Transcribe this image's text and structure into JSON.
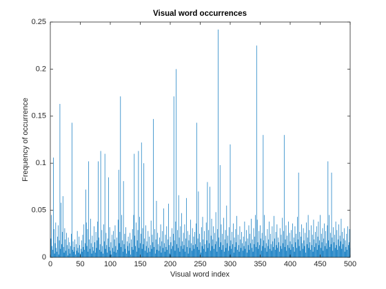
{
  "chart_data": {
    "type": "bar",
    "title": "Visual word occurrences",
    "xlabel": "Visual word index",
    "ylabel": "Frequency of occurrence",
    "color": "#0072bd",
    "xlim": [
      0,
      500
    ],
    "xticks": [
      0,
      50,
      100,
      150,
      200,
      250,
      300,
      350,
      400,
      450,
      500
    ],
    "ylim": [
      0,
      0.25
    ],
    "yticks": [
      0,
      0.05,
      0.1,
      0.15,
      0.2,
      0.25
    ],
    "x": [
      1,
      2,
      3,
      4,
      5,
      6,
      7,
      8,
      9,
      10,
      11,
      12,
      13,
      14,
      15,
      16,
      17,
      18,
      19,
      20,
      21,
      22,
      23,
      24,
      25,
      26,
      27,
      28,
      29,
      30,
      31,
      32,
      33,
      34,
      35,
      36,
      37,
      38,
      39,
      40,
      41,
      42,
      43,
      44,
      45,
      46,
      47,
      48,
      49,
      50,
      51,
      52,
      53,
      54,
      55,
      56,
      57,
      58,
      59,
      60,
      61,
      62,
      63,
      64,
      65,
      66,
      67,
      68,
      69,
      70,
      71,
      72,
      73,
      74,
      75,
      76,
      77,
      78,
      79,
      80,
      81,
      82,
      83,
      84,
      85,
      86,
      87,
      88,
      89,
      90,
      91,
      92,
      93,
      94,
      95,
      96,
      97,
      98,
      99,
      100,
      101,
      102,
      103,
      104,
      105,
      106,
      107,
      108,
      109,
      110,
      111,
      112,
      113,
      114,
      115,
      116,
      117,
      118,
      119,
      120,
      121,
      122,
      123,
      124,
      125,
      126,
      127,
      128,
      129,
      130,
      131,
      132,
      133,
      134,
      135,
      136,
      137,
      138,
      139,
      140,
      141,
      142,
      143,
      144,
      145,
      146,
      147,
      148,
      149,
      150,
      151,
      152,
      153,
      154,
      155,
      156,
      157,
      158,
      159,
      160,
      161,
      162,
      163,
      164,
      165,
      166,
      167,
      168,
      169,
      170,
      171,
      172,
      173,
      174,
      175,
      176,
      177,
      178,
      179,
      180,
      181,
      182,
      183,
      184,
      185,
      186,
      187,
      188,
      189,
      190,
      191,
      192,
      193,
      194,
      195,
      196,
      197,
      198,
      199,
      200,
      201,
      202,
      203,
      204,
      205,
      206,
      207,
      208,
      209,
      210,
      211,
      212,
      213,
      214,
      215,
      216,
      217,
      218,
      219,
      220,
      221,
      222,
      223,
      224,
      225,
      226,
      227,
      228,
      229,
      230,
      231,
      232,
      233,
      234,
      235,
      236,
      237,
      238,
      239,
      240,
      241,
      242,
      243,
      244,
      245,
      246,
      247,
      248,
      249,
      250,
      251,
      252,
      253,
      254,
      255,
      256,
      257,
      258,
      259,
      260,
      261,
      262,
      263,
      264,
      265,
      266,
      267,
      268,
      269,
      270,
      271,
      272,
      273,
      274,
      275,
      276,
      277,
      278,
      279,
      280,
      281,
      282,
      283,
      284,
      285,
      286,
      287,
      288,
      289,
      290,
      291,
      292,
      293,
      294,
      295,
      296,
      297,
      298,
      299,
      300,
      301,
      302,
      303,
      304,
      305,
      306,
      307,
      308,
      309,
      310,
      311,
      312,
      313,
      314,
      315,
      316,
      317,
      318,
      319,
      320,
      321,
      322,
      323,
      324,
      325,
      326,
      327,
      328,
      329,
      330,
      331,
      332,
      333,
      334,
      335,
      336,
      337,
      338,
      339,
      340,
      341,
      342,
      343,
      344,
      345,
      346,
      347,
      348,
      349,
      350,
      351,
      352,
      353,
      354,
      355,
      356,
      357,
      358,
      359,
      360,
      361,
      362,
      363,
      364,
      365,
      366,
      367,
      368,
      369,
      370,
      371,
      372,
      373,
      374,
      375,
      376,
      377,
      378,
      379,
      380,
      381,
      382,
      383,
      384,
      385,
      386,
      387,
      388,
      389,
      390,
      391,
      392,
      393,
      394,
      395,
      396,
      397,
      398,
      399,
      400,
      401,
      402,
      403,
      404,
      405,
      406,
      407,
      408,
      409,
      410,
      411,
      412,
      413,
      414,
      415,
      416,
      417,
      418,
      419,
      420,
      421,
      422,
      423,
      424,
      425,
      426,
      427,
      428,
      429,
      430,
      431,
      432,
      433,
      434,
      435,
      436,
      437,
      438,
      439,
      440,
      441,
      442,
      443,
      444,
      445,
      446,
      447,
      448,
      449,
      450,
      451,
      452,
      453,
      454,
      455,
      456,
      457,
      458,
      459,
      460,
      461,
      462,
      463,
      464,
      465,
      466,
      467,
      468,
      469,
      470,
      471,
      472,
      473,
      474,
      475,
      476,
      477,
      478,
      479,
      480,
      481,
      482,
      483,
      484,
      485,
      486,
      487,
      488,
      489,
      490,
      491,
      492,
      493,
      494,
      495,
      496,
      497,
      498,
      499,
      500
    ],
    "values": [
      0.02,
      0.045,
      0.012,
      0.008,
      0.106,
      0.03,
      0.004,
      0.015,
      0.037,
      0.01,
      0.006,
      0.022,
      0.034,
      0.003,
      0.018,
      0.163,
      0.009,
      0.058,
      0.014,
      0.027,
      0.065,
      0.011,
      0.005,
      0.031,
      0.019,
      0.007,
      0.026,
      0.013,
      0.002,
      0.021,
      0.009,
      0.016,
      0.004,
      0.012,
      0.025,
      0.143,
      0.008,
      0.017,
      0.006,
      0.011,
      0.019,
      0.003,
      0.014,
      0.007,
      0.028,
      0.01,
      0.005,
      0.022,
      0.013,
      0.004,
      0.009,
      0.018,
      0.006,
      0.024,
      0.011,
      0.035,
      0.008,
      0.015,
      0.072,
      0.037,
      0.012,
      0.03,
      0.006,
      0.102,
      0.019,
      0.009,
      0.041,
      0.015,
      0.004,
      0.023,
      0.011,
      0.007,
      0.033,
      0.016,
      0.005,
      0.027,
      0.01,
      0.018,
      0.038,
      0.102,
      0.021,
      0.008,
      0.014,
      0.113,
      0.006,
      0.029,
      0.012,
      0.004,
      0.035,
      0.017,
      0.11,
      0.009,
      0.026,
      0.013,
      0.005,
      0.02,
      0.085,
      0.011,
      0.032,
      0.007,
      0.016,
      0.003,
      0.024,
      0.01,
      0.028,
      0.006,
      0.019,
      0.034,
      0.012,
      0.005,
      0.021,
      0.008,
      0.04,
      0.093,
      0.015,
      0.027,
      0.171,
      0.011,
      0.045,
      0.018,
      0.006,
      0.081,
      0.014,
      0.025,
      0.009,
      0.032,
      0.004,
      0.017,
      0.012,
      0.022,
      0.007,
      0.015,
      0.026,
      0.003,
      0.019,
      0.011,
      0.03,
      0.008,
      0.045,
      0.11,
      0.023,
      0.012,
      0.037,
      0.006,
      0.018,
      0.029,
      0.113,
      0.01,
      0.043,
      0.015,
      0.025,
      0.122,
      0.009,
      0.031,
      0.014,
      0.1,
      0.02,
      0.007,
      0.034,
      0.012,
      0.017,
      0.005,
      0.028,
      0.01,
      0.022,
      0.006,
      0.013,
      0.039,
      0.009,
      0.024,
      0.016,
      0.147,
      0.011,
      0.03,
      0.004,
      0.019,
      0.06,
      0.008,
      0.026,
      0.014,
      0.007,
      0.021,
      0.012,
      0.035,
      0.005,
      0.017,
      0.028,
      0.01,
      0.052,
      0.015,
      0.006,
      0.024,
      0.011,
      0.033,
      0.008,
      0.019,
      0.057,
      0.013,
      0.004,
      0.022,
      0.016,
      0.009,
      0.031,
      0.012,
      0.025,
      0.171,
      0.018,
      0.007,
      0.038,
      0.2,
      0.014,
      0.029,
      0.01,
      0.066,
      0.021,
      0.006,
      0.033,
      0.012,
      0.047,
      0.017,
      0.009,
      0.026,
      0.013,
      0.035,
      0.006,
      0.02,
      0.063,
      0.011,
      0.028,
      0.004,
      0.018,
      0.024,
      0.01,
      0.04,
      0.015,
      0.007,
      0.031,
      0.013,
      0.022,
      0.009,
      0.027,
      0.014,
      0.036,
      0.143,
      0.011,
      0.02,
      0.07,
      0.008,
      0.025,
      0.016,
      0.005,
      0.032,
      0.012,
      0.043,
      0.019,
      0.009,
      0.028,
      0.014,
      0.006,
      0.037,
      0.018,
      0.08,
      0.01,
      0.029,
      0.015,
      0.075,
      0.007,
      0.023,
      0.041,
      0.012,
      0.019,
      0.033,
      0.009,
      0.026,
      0.014,
      0.048,
      0.017,
      0.006,
      0.03,
      0.242,
      0.021,
      0.011,
      0.098,
      0.016,
      0.035,
      0.008,
      0.025,
      0.013,
      0.042,
      0.006,
      0.019,
      0.029,
      0.01,
      0.055,
      0.015,
      0.023,
      0.007,
      0.032,
      0.012,
      0.12,
      0.018,
      0.009,
      0.027,
      0.014,
      0.036,
      0.005,
      0.021,
      0.011,
      0.03,
      0.016,
      0.044,
      0.008,
      0.024,
      0.013,
      0.006,
      0.033,
      0.019,
      0.01,
      0.027,
      0.015,
      0.007,
      0.022,
      0.012,
      0.038,
      0.009,
      0.017,
      0.029,
      0.005,
      0.02,
      0.013,
      0.034,
      0.008,
      0.025,
      0.015,
      0.041,
      0.01,
      0.019,
      0.006,
      0.031,
      0.014,
      0.022,
      0.045,
      0.011,
      0.225,
      0.04,
      0.016,
      0.009,
      0.028,
      0.013,
      0.034,
      0.02,
      0.007,
      0.026,
      0.012,
      0.13,
      0.018,
      0.045,
      0.01,
      0.023,
      0.015,
      0.006,
      0.03,
      0.012,
      0.019,
      0.038,
      0.009,
      0.025,
      0.014,
      0.007,
      0.033,
      0.017,
      0.011,
      0.044,
      0.02,
      0.008,
      0.027,
      0.013,
      0.035,
      0.01,
      0.021,
      0.016,
      0.006,
      0.031,
      0.012,
      0.024,
      0.009,
      0.042,
      0.015,
      0.028,
      0.13,
      0.011,
      0.019,
      0.034,
      0.007,
      0.023,
      0.013,
      0.038,
      0.01,
      0.026,
      0.017,
      0.008,
      0.029,
      0.014,
      0.036,
      0.011,
      0.021,
      0.006,
      0.033,
      0.016,
      0.025,
      0.01,
      0.043,
      0.019,
      0.09,
      0.012,
      0.027,
      0.007,
      0.022,
      0.035,
      0.015,
      0.009,
      0.031,
      0.018,
      0.012,
      0.026,
      0.005,
      0.037,
      0.014,
      0.021,
      0.045,
      0.01,
      0.029,
      0.016,
      0.008,
      0.034,
      0.013,
      0.024,
      0.006,
      0.04,
      0.019,
      0.011,
      0.027,
      0.015,
      0.033,
      0.008,
      0.022,
      0.038,
      0.013,
      0.018,
      0.045,
      0.01,
      0.025,
      0.016,
      0.031,
      0.007,
      0.02,
      0.036,
      0.012,
      0.028,
      0.015,
      0.009,
      0.034,
      0.102,
      0.018,
      0.045,
      0.011,
      0.026,
      0.014,
      0.09,
      0.021,
      0.007,
      0.032,
      0.016,
      0.024,
      0.01,
      0.038,
      0.013,
      0.029,
      0.008,
      0.019,
      0.035,
      0.012,
      0.023,
      0.017,
      0.041,
      0.009,
      0.027,
      0.014,
      0.02,
      0.031,
      0.006,
      0.018,
      0.011,
      0.025,
      0.008,
      0.033,
      0.013,
      0.016,
      0.03,
      0.01
    ]
  }
}
